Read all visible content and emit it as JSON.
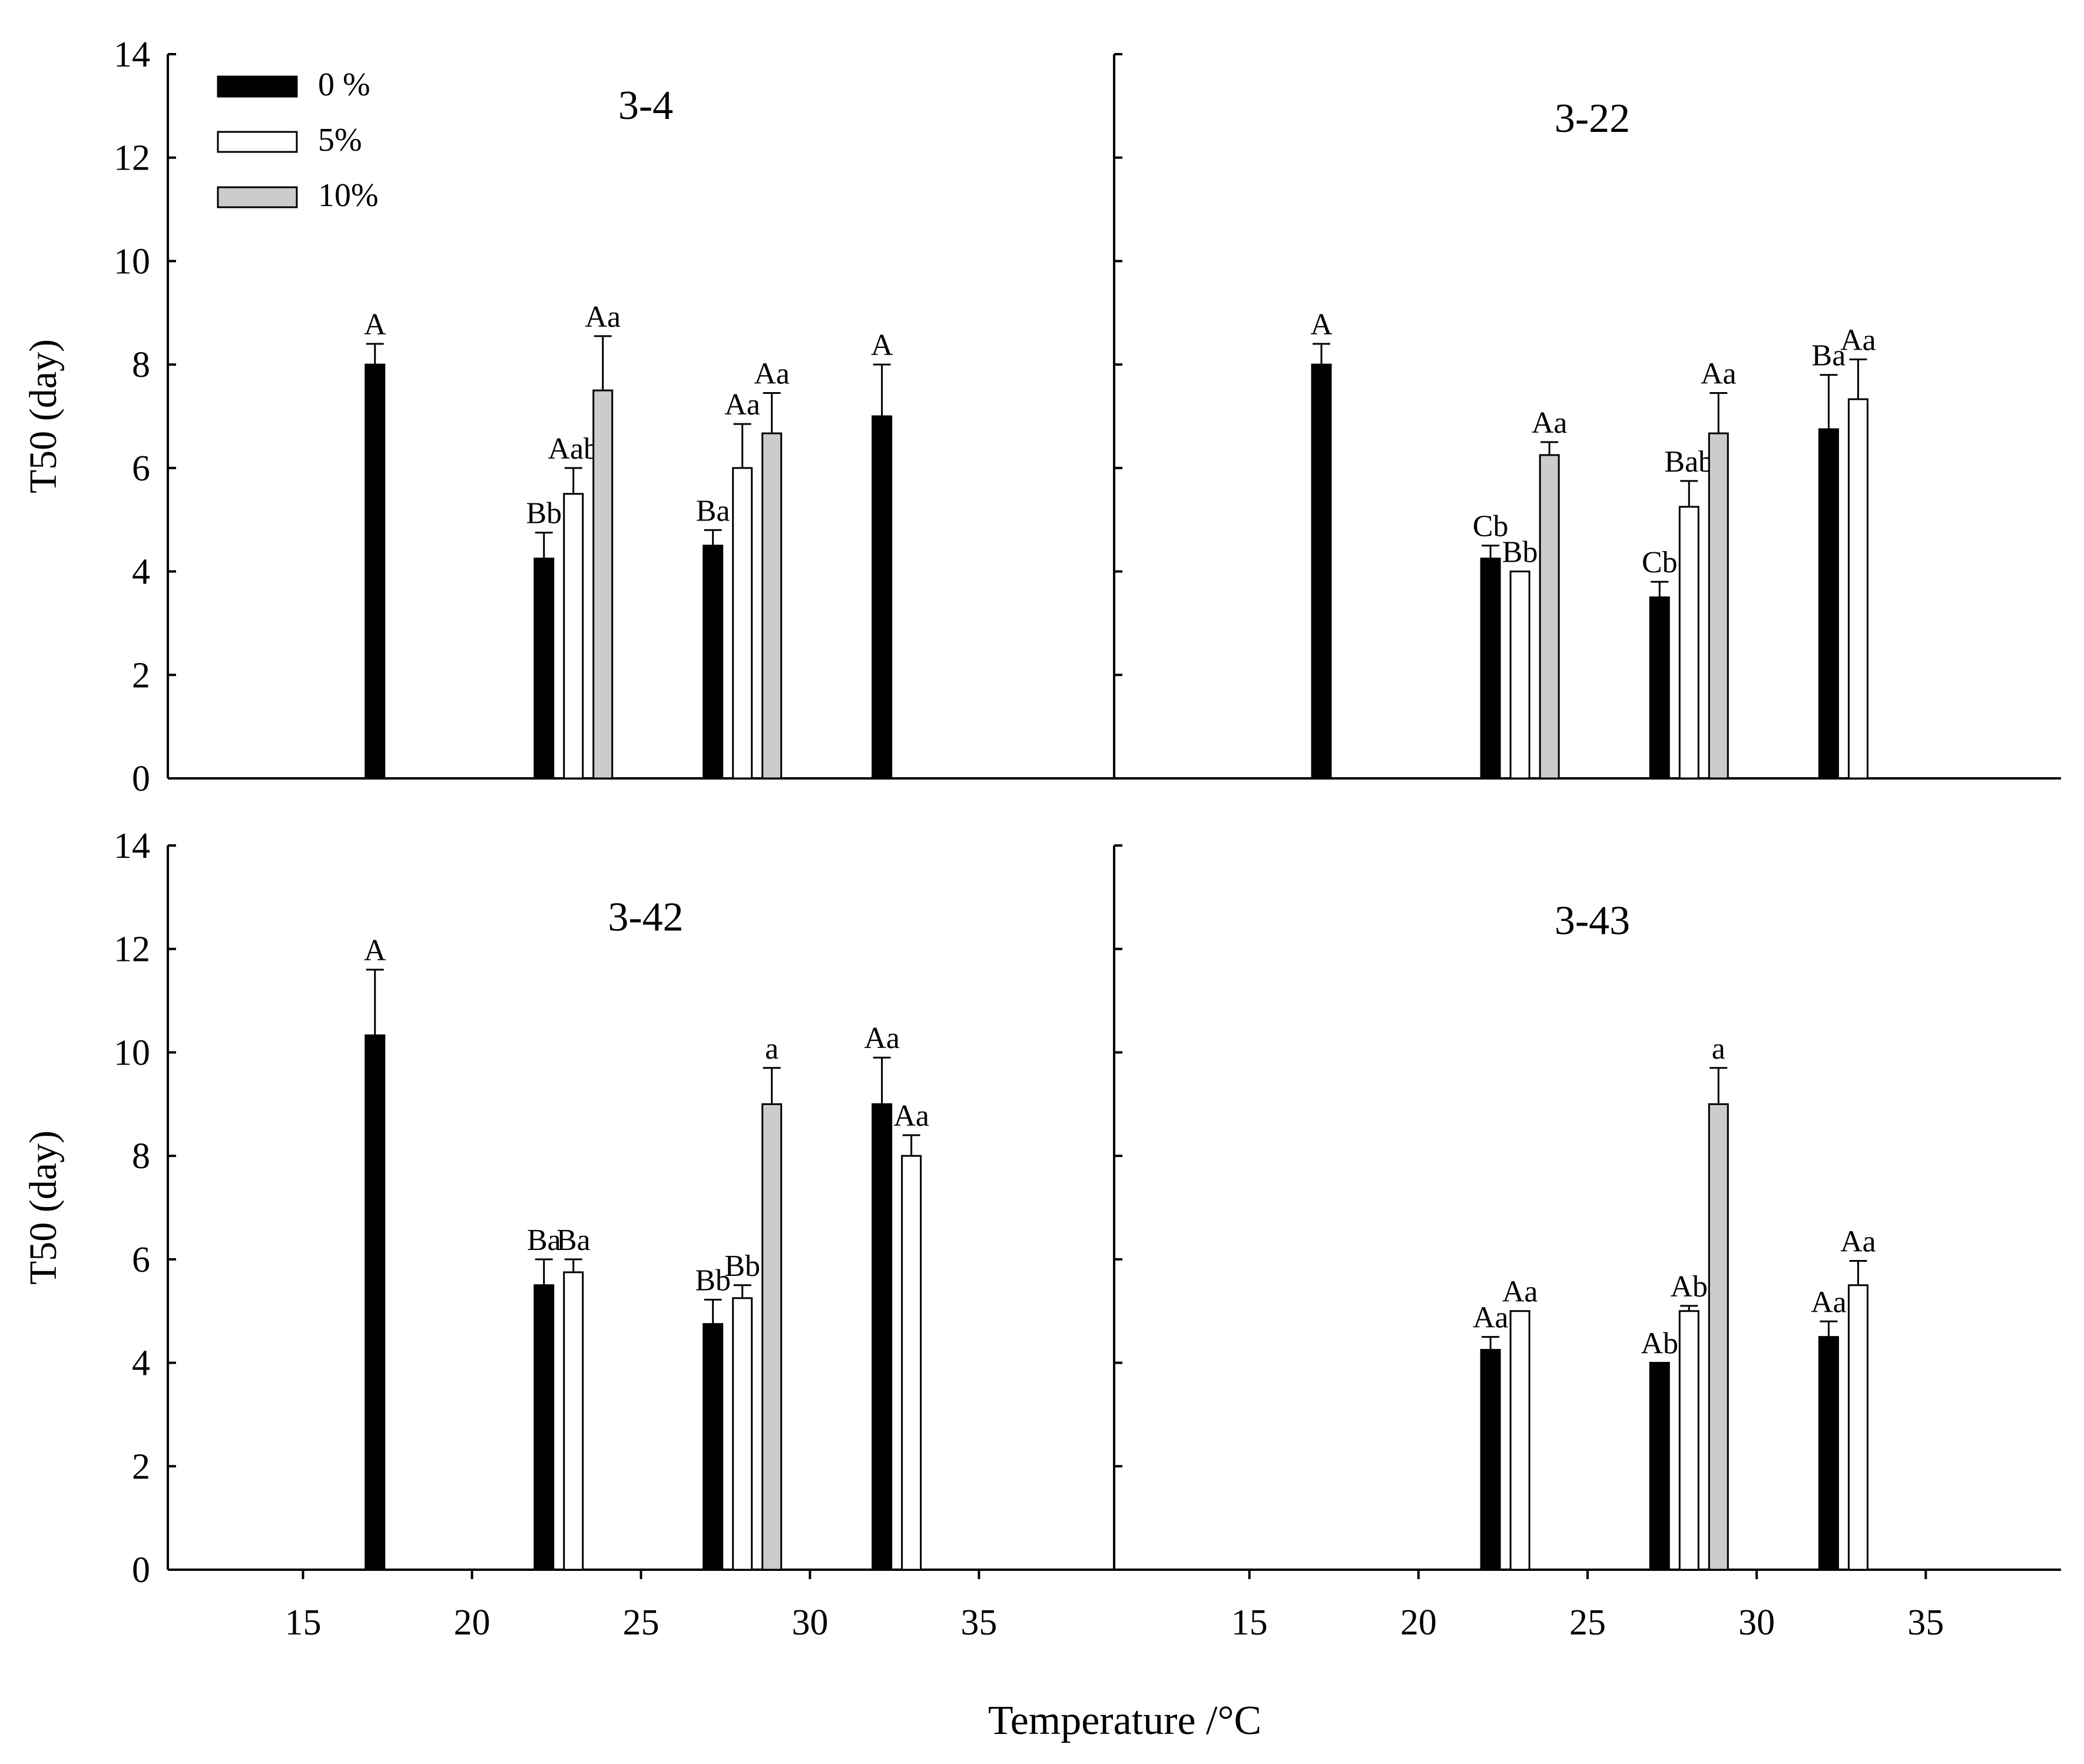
{
  "legend": [
    {
      "label": "0 %",
      "color": "#000000"
    },
    {
      "label": "5%",
      "color": "#ffffff"
    },
    {
      "label": "10%",
      "color": "#cccccc"
    }
  ],
  "xlabel": "Temperature /°C",
  "ylabel": "T50 (day)",
  "chart_data": [
    {
      "type": "bar",
      "title": "3-4",
      "categories": [
        "18",
        "23",
        "28",
        "33"
      ],
      "xlim": [
        11,
        39
      ],
      "ylim": [
        0,
        14
      ],
      "xticks": [
        15,
        20,
        25,
        30,
        35
      ],
      "yticks": [
        0,
        2,
        4,
        6,
        8,
        10,
        12,
        14
      ],
      "ylabel": "T50 (day)",
      "series": [
        {
          "name": "0 %",
          "values": [
            8,
            4.25,
            4.5,
            7
          ],
          "errors": [
            0.4,
            0.5,
            0.3,
            1.0
          ],
          "labels": [
            "A",
            "Bb",
            "Ba",
            "A"
          ]
        },
        {
          "name": "5%",
          "values": [
            null,
            5.5,
            6,
            null
          ],
          "errors": [
            null,
            0.5,
            0.85,
            null
          ],
          "labels": [
            "",
            "Aab",
            "Aa",
            ""
          ]
        },
        {
          "name": "10%",
          "values": [
            null,
            7.5,
            6.67,
            null
          ],
          "errors": [
            null,
            1.05,
            0.78,
            null
          ],
          "labels": [
            "",
            "Aa",
            "Aa",
            ""
          ]
        }
      ]
    },
    {
      "type": "bar",
      "title": "3-22",
      "categories": [
        "18",
        "23",
        "28",
        "33"
      ],
      "xlim": [
        11,
        39
      ],
      "ylim": [
        0,
        14
      ],
      "xticks": [
        15,
        20,
        25,
        30,
        35
      ],
      "yticks": [
        0,
        2,
        4,
        6,
        8,
        10,
        12,
        14
      ],
      "ylabel": "",
      "series": [
        {
          "name": "0 %",
          "values": [
            8,
            4.25,
            3.5,
            6.75
          ],
          "errors": [
            0.4,
            0.25,
            0.3,
            1.05
          ],
          "labels": [
            "A",
            "Cb",
            "Cb",
            "Ba"
          ]
        },
        {
          "name": "5%",
          "values": [
            null,
            4,
            5.25,
            7.33
          ],
          "errors": [
            null,
            0,
            0.5,
            0.77
          ],
          "labels": [
            "",
            "Bb",
            "Bab",
            "Aa"
          ]
        },
        {
          "name": "10%",
          "values": [
            null,
            6.25,
            6.67,
            null
          ],
          "errors": [
            null,
            0.25,
            0.78,
            null
          ],
          "labels": [
            "",
            "Aa",
            "Aa",
            ""
          ]
        }
      ]
    },
    {
      "type": "bar",
      "title": "3-42",
      "categories": [
        "18",
        "23",
        "28",
        "33"
      ],
      "xlim": [
        11,
        39
      ],
      "ylim": [
        0,
        14
      ],
      "xticks": [
        15,
        20,
        25,
        30,
        35
      ],
      "yticks": [
        0,
        2,
        4,
        6,
        8,
        10,
        12,
        14
      ],
      "ylabel": "T50 (day)",
      "series": [
        {
          "name": "0 %",
          "values": [
            10.33,
            5.5,
            4.75,
            9
          ],
          "errors": [
            1.27,
            0.5,
            0.47,
            0.9
          ],
          "labels": [
            "A",
            "Ba",
            "Bb",
            "Aa"
          ]
        },
        {
          "name": "5%",
          "values": [
            null,
            5.75,
            5.25,
            8
          ],
          "errors": [
            null,
            0.25,
            0.25,
            0.4
          ],
          "labels": [
            "",
            "Ba",
            "Bb",
            "Aa"
          ]
        },
        {
          "name": "10%",
          "values": [
            null,
            null,
            9,
            null
          ],
          "errors": [
            null,
            null,
            0.7,
            null
          ],
          "labels": [
            "",
            "",
            "a",
            ""
          ]
        }
      ]
    },
    {
      "type": "bar",
      "title": "3-43",
      "categories": [
        "18",
        "23",
        "28",
        "33"
      ],
      "xlim": [
        11,
        39
      ],
      "ylim": [
        0,
        14
      ],
      "xticks": [
        15,
        20,
        25,
        30,
        35
      ],
      "yticks": [
        0,
        2,
        4,
        6,
        8,
        10,
        12,
        14
      ],
      "ylabel": "",
      "series": [
        {
          "name": "0 %",
          "values": [
            null,
            4.25,
            4,
            4.5
          ],
          "errors": [
            null,
            0.25,
            0,
            0.3
          ],
          "labels": [
            "",
            "Aa",
            "Ab",
            "Aa"
          ]
        },
        {
          "name": "5%",
          "values": [
            null,
            5,
            5,
            5.5
          ],
          "errors": [
            null,
            0,
            0.1,
            0.47
          ],
          "labels": [
            "",
            "Aa",
            "Ab",
            "Aa"
          ]
        },
        {
          "name": "10%",
          "values": [
            null,
            null,
            9,
            null
          ],
          "errors": [
            null,
            null,
            0.7,
            null
          ],
          "labels": [
            "",
            "",
            "a",
            ""
          ]
        }
      ]
    }
  ]
}
